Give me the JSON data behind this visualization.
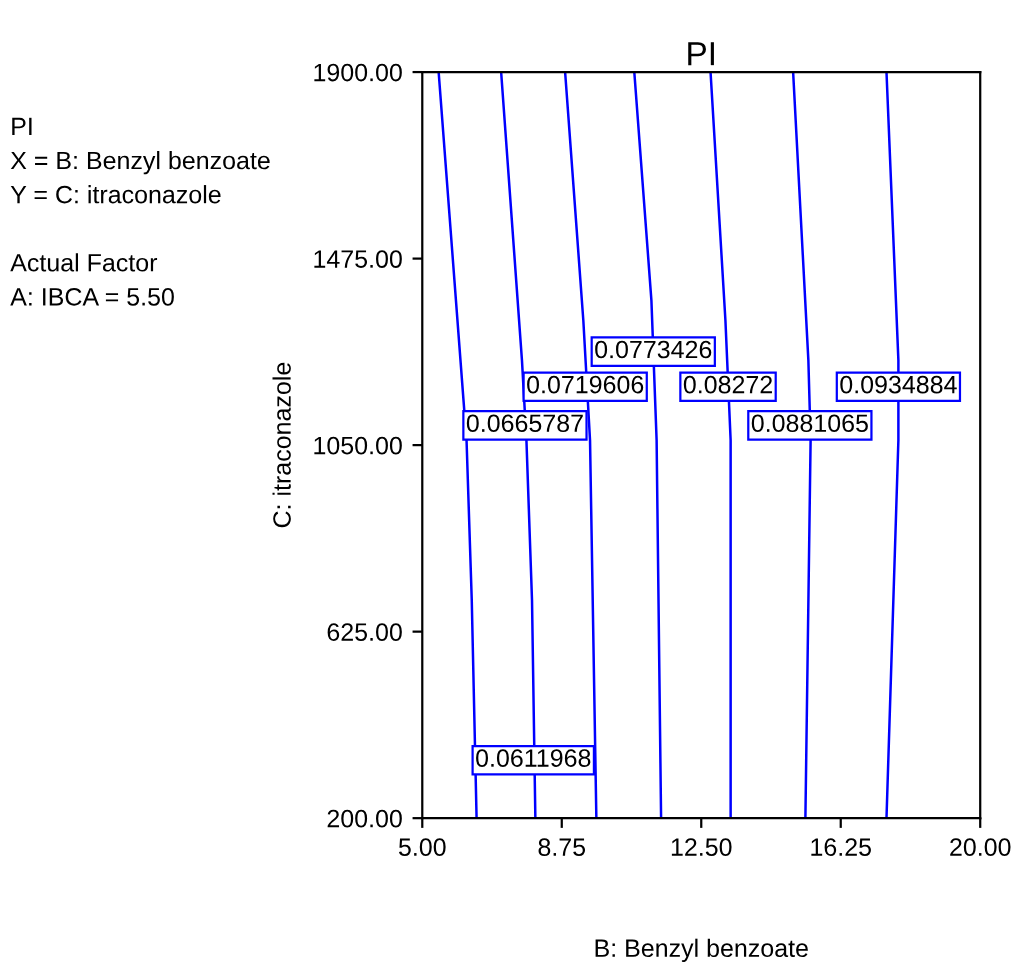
{
  "chart_data": {
    "type": "line",
    "title": "PI",
    "xlabel": "B: Benzyl benzoate",
    "ylabel": "C: itraconazole",
    "xlim": [
      5,
      20
    ],
    "ylim": [
      200,
      1900
    ],
    "xticks": [
      {
        "value": 5,
        "label": "5.00"
      },
      {
        "value": 8.75,
        "label": "8.75"
      },
      {
        "value": 12.5,
        "label": "12.50"
      },
      {
        "value": 16.25,
        "label": "16.25"
      },
      {
        "value": 20,
        "label": "20.00"
      }
    ],
    "yticks": [
      {
        "value": 200,
        "label": "200.00"
      },
      {
        "value": 625,
        "label": "625.00"
      },
      {
        "value": 1050,
        "label": "1050.00"
      },
      {
        "value": 1475,
        "label": "1475.00"
      },
      {
        "value": 1900,
        "label": "1900.00"
      }
    ],
    "marker": "none",
    "line_style": "solid",
    "grid": false,
    "legend": false,
    "series": [
      {
        "color": "#0000ff",
        "x": [
          5.44,
          6.19,
          6.33,
          6.46
        ],
        "values": [
          1900,
          1061,
          697,
          200
        ]
      },
      {
        "color": "#0000ff",
        "x": [
          7.12,
          7.68,
          7.8,
          7.95,
          8.04
        ],
        "values": [
          1900,
          1243,
          1061,
          697,
          200
        ]
      },
      {
        "color": "#0000ff",
        "x": [
          8.84,
          9.33,
          9.51,
          9.68
        ],
        "values": [
          1900,
          1334,
          1061,
          200
        ]
      },
      {
        "color": "#0000ff",
        "x": [
          10.7,
          11.16,
          11.3,
          11.42
        ],
        "values": [
          1900,
          1380,
          1061,
          200
        ]
      },
      {
        "color": "#0000ff",
        "x": [
          12.75,
          13.15,
          13.29,
          13.29
        ],
        "values": [
          1900,
          1334,
          1061,
          200
        ]
      },
      {
        "color": "#0000ff",
        "x": [
          14.97,
          15.38,
          15.44,
          15.3
        ],
        "values": [
          1900,
          1243,
          1061,
          200
        ]
      },
      {
        "color": "#0000ff",
        "x": [
          17.48,
          17.8,
          17.8,
          17.48
        ],
        "values": [
          1900,
          1243,
          1061,
          200
        ]
      }
    ],
    "annotations": [
      {
        "text": "0.0773426",
        "x": 11.21,
        "y": 1263
      },
      {
        "text": "0.0719606",
        "x": 9.38,
        "y": 1183
      },
      {
        "text": "0.08272",
        "x": 13.22,
        "y": 1183
      },
      {
        "text": "0.0934884",
        "x": 17.8,
        "y": 1183
      },
      {
        "text": "0.0665787",
        "x": 7.76,
        "y": 1095
      },
      {
        "text": "0.0881065",
        "x": 15.42,
        "y": 1095
      },
      {
        "text": "0.0611968",
        "x": 6.42,
        "y": 332
      },
      "PI",
      "X = B: Benzyl benzoate",
      "Y = C: itraconazole",
      "Actual Factor",
      "A: IBCA = 5.50"
    ]
  }
}
